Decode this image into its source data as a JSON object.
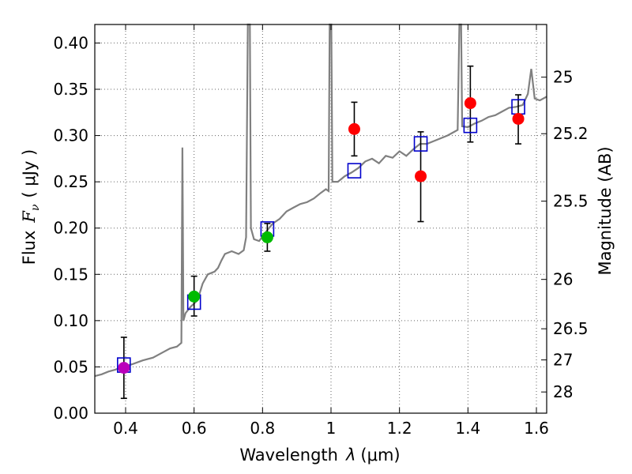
{
  "chart_data": {
    "type": "scatter",
    "xlabel_text": "Wavelength",
    "xlabel_symbol": "λ",
    "xlabel_unit": "(μm)",
    "ylabel_text": "Flux",
    "ylabel_symbol": "F",
    "ylabel_sub": "ν",
    "ylabel_unit": "( μJy )",
    "y2label": "Magnitude (AB)",
    "xlim": [
      0.31,
      1.63
    ],
    "ylim": [
      0.0,
      0.42
    ],
    "x_ticks": [
      {
        "value": 0.4,
        "label": "0.4"
      },
      {
        "value": 0.6,
        "label": "0.6"
      },
      {
        "value": 0.8,
        "label": "0.8"
      },
      {
        "value": 1.0,
        "label": "1"
      },
      {
        "value": 1.2,
        "label": "1.2"
      },
      {
        "value": 1.4,
        "label": "1.4"
      },
      {
        "value": 1.6,
        "label": "1.6"
      }
    ],
    "y_ticks": [
      {
        "value": 0.0,
        "label": "0.00"
      },
      {
        "value": 0.05,
        "label": "0.05"
      },
      {
        "value": 0.1,
        "label": "0.10"
      },
      {
        "value": 0.15,
        "label": "0.15"
      },
      {
        "value": 0.2,
        "label": "0.20"
      },
      {
        "value": 0.25,
        "label": "0.25"
      },
      {
        "value": 0.3,
        "label": "0.30"
      },
      {
        "value": 0.35,
        "label": "0.35"
      },
      {
        "value": 0.4,
        "label": "0.40"
      }
    ],
    "mag_ticks": [
      {
        "mag": 25,
        "label": "25"
      },
      {
        "mag": 25.2,
        "label": "25.2"
      },
      {
        "mag": 25.5,
        "label": "25.5"
      },
      {
        "mag": 26,
        "label": "26"
      },
      {
        "mag": 26.5,
        "label": "26.5"
      },
      {
        "mag": 27,
        "label": "27"
      },
      {
        "mag": 28,
        "label": "28"
      }
    ],
    "observed_points": [
      {
        "x": 0.395,
        "y": 0.049,
        "err_lo": 0.016,
        "err_hi": 0.082,
        "color": "#bb00bb"
      },
      {
        "x": 0.6,
        "y": 0.126,
        "err_lo": 0.105,
        "err_hi": 0.148,
        "color": "#00bb00"
      },
      {
        "x": 0.814,
        "y": 0.19,
        "err_lo": 0.175,
        "err_hi": 0.205,
        "color": "#00bb00"
      },
      {
        "x": 1.068,
        "y": 0.307,
        "err_lo": 0.278,
        "err_hi": 0.336,
        "color": "#ff0000"
      },
      {
        "x": 1.262,
        "y": 0.256,
        "err_lo": 0.207,
        "err_hi": 0.304,
        "color": "#ff0000"
      },
      {
        "x": 1.407,
        "y": 0.335,
        "err_lo": 0.293,
        "err_hi": 0.375,
        "color": "#ff0000"
      },
      {
        "x": 1.547,
        "y": 0.318,
        "err_lo": 0.291,
        "err_hi": 0.344,
        "color": "#ff0000"
      }
    ],
    "model_points": [
      {
        "x": 0.395,
        "y": 0.052
      },
      {
        "x": 0.6,
        "y": 0.12
      },
      {
        "x": 0.814,
        "y": 0.199
      },
      {
        "x": 1.068,
        "y": 0.262
      },
      {
        "x": 1.262,
        "y": 0.291
      },
      {
        "x": 1.407,
        "y": 0.311
      },
      {
        "x": 1.547,
        "y": 0.331
      }
    ],
    "spectrum": [
      [
        0.31,
        0.04
      ],
      [
        0.33,
        0.042
      ],
      [
        0.35,
        0.045
      ],
      [
        0.37,
        0.047
      ],
      [
        0.39,
        0.05
      ],
      [
        0.42,
        0.053
      ],
      [
        0.45,
        0.057
      ],
      [
        0.48,
        0.06
      ],
      [
        0.51,
        0.066
      ],
      [
        0.53,
        0.07
      ],
      [
        0.55,
        0.072
      ],
      [
        0.563,
        0.076
      ],
      [
        0.566,
        0.287
      ],
      [
        0.569,
        0.1
      ],
      [
        0.575,
        0.108
      ],
      [
        0.59,
        0.115
      ],
      [
        0.61,
        0.122
      ],
      [
        0.625,
        0.14
      ],
      [
        0.64,
        0.15
      ],
      [
        0.66,
        0.153
      ],
      [
        0.67,
        0.157
      ],
      [
        0.68,
        0.165
      ],
      [
        0.69,
        0.172
      ],
      [
        0.71,
        0.175
      ],
      [
        0.73,
        0.172
      ],
      [
        0.745,
        0.176
      ],
      [
        0.752,
        0.19
      ],
      [
        0.757,
        0.42
      ],
      [
        0.763,
        0.42
      ],
      [
        0.766,
        0.2
      ],
      [
        0.775,
        0.188
      ],
      [
        0.79,
        0.186
      ],
      [
        0.81,
        0.196
      ],
      [
        0.83,
        0.205
      ],
      [
        0.85,
        0.21
      ],
      [
        0.87,
        0.218
      ],
      [
        0.89,
        0.222
      ],
      [
        0.91,
        0.226
      ],
      [
        0.93,
        0.228
      ],
      [
        0.95,
        0.232
      ],
      [
        0.97,
        0.238
      ],
      [
        0.985,
        0.242
      ],
      [
        0.993,
        0.24
      ],
      [
        0.996,
        0.42
      ],
      [
        1.001,
        0.42
      ],
      [
        1.004,
        0.25
      ],
      [
        1.02,
        0.25
      ],
      [
        1.04,
        0.256
      ],
      [
        1.06,
        0.26
      ],
      [
        1.08,
        0.265
      ],
      [
        1.1,
        0.272
      ],
      [
        1.12,
        0.275
      ],
      [
        1.14,
        0.27
      ],
      [
        1.16,
        0.278
      ],
      [
        1.18,
        0.276
      ],
      [
        1.2,
        0.283
      ],
      [
        1.22,
        0.278
      ],
      [
        1.24,
        0.285
      ],
      [
        1.26,
        0.291
      ],
      [
        1.28,
        0.291
      ],
      [
        1.3,
        0.294
      ],
      [
        1.32,
        0.297
      ],
      [
        1.34,
        0.3
      ],
      [
        1.36,
        0.304
      ],
      [
        1.37,
        0.306
      ],
      [
        1.375,
        0.42
      ],
      [
        1.38,
        0.42
      ],
      [
        1.383,
        0.31
      ],
      [
        1.4,
        0.309
      ],
      [
        1.42,
        0.313
      ],
      [
        1.44,
        0.316
      ],
      [
        1.46,
        0.32
      ],
      [
        1.48,
        0.322
      ],
      [
        1.5,
        0.326
      ],
      [
        1.52,
        0.33
      ],
      [
        1.54,
        0.331
      ],
      [
        1.56,
        0.333
      ],
      [
        1.575,
        0.345
      ],
      [
        1.585,
        0.372
      ],
      [
        1.595,
        0.34
      ],
      [
        1.61,
        0.338
      ],
      [
        1.63,
        0.342
      ]
    ],
    "colors": {
      "spectrum": "#808080",
      "model_box": "#0000cc",
      "error_bar": "#000000"
    }
  }
}
